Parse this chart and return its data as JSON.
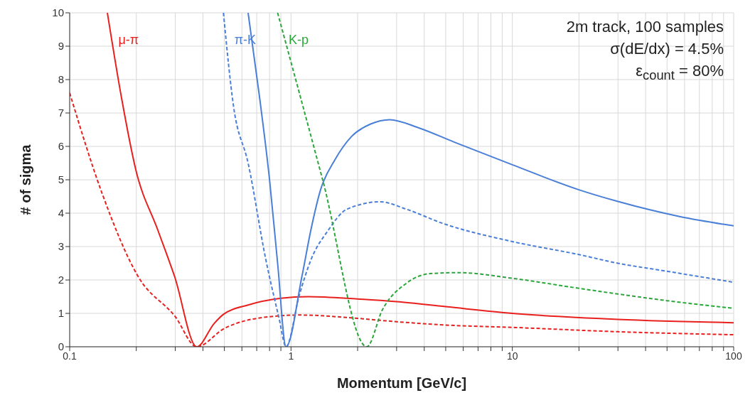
{
  "chart_data": {
    "type": "line",
    "xlabel": "Momentum [GeV/c]",
    "ylabel": "# of sigma",
    "log": "x",
    "grid": true,
    "marker": "none",
    "legend": false,
    "xlim": [
      0.1,
      100
    ],
    "ylim": [
      0,
      10
    ],
    "yticks": [
      0,
      1,
      2,
      3,
      4,
      5,
      6,
      7,
      8,
      9,
      10
    ],
    "xticks": [
      0.1,
      {
        "value": 0.2,
        "label": null
      },
      {
        "value": 0.3,
        "label": null
      },
      {
        "value": 0.4,
        "label": null
      },
      {
        "value": 0.5,
        "label": null
      },
      {
        "value": 0.6,
        "label": null
      },
      {
        "value": 0.7,
        "label": null
      },
      {
        "value": 0.8,
        "label": null
      },
      {
        "value": 0.9,
        "label": null
      },
      1,
      {
        "value": 2,
        "label": null
      },
      {
        "value": 3,
        "label": null
      },
      {
        "value": 4,
        "label": null
      },
      {
        "value": 5,
        "label": null
      },
      {
        "value": 6,
        "label": null
      },
      {
        "value": 7,
        "label": null
      },
      {
        "value": 8,
        "label": null
      },
      {
        "value": 9,
        "label": null
      },
      10,
      {
        "value": 20,
        "label": null
      },
      {
        "value": 30,
        "label": null
      },
      {
        "value": 40,
        "label": null
      },
      {
        "value": 50,
        "label": null
      },
      {
        "value": 60,
        "label": null
      },
      {
        "value": 70,
        "label": null
      },
      {
        "value": 80,
        "label": null
      },
      {
        "value": 90,
        "label": null
      },
      100
    ],
    "annotations": [
      "2m track, 100 samples",
      "σ(dE/dx) = 4.5%",
      "ε$_{count}$ = 80%"
    ],
    "series": [
      {
        "name": "μ-π",
        "color": "#e8201e",
        "line_style": "solid",
        "x": [
          0.148,
          0.171,
          0.199,
          0.25,
          0.298,
          0.375,
          0.45,
          0.495,
          0.64,
          0.9,
          1.2,
          2,
          3,
          5,
          10,
          30,
          100
        ],
        "values": [
          10,
          7.5,
          5.3,
          3.5,
          2.1,
          0,
          0.7,
          0.97,
          1.25,
          1.45,
          1.5,
          1.43,
          1.35,
          1.2,
          1.0,
          0.82,
          0.72
        ]
      },
      {
        "color": "#e8201e",
        "line_style": "dashed",
        "x": [
          0.1,
          0.14,
          0.204,
          0.3,
          0.375,
          0.5,
          0.7,
          1.1,
          2,
          3,
          5,
          10,
          30,
          100
        ],
        "values": [
          7.6,
          4.6,
          2.1,
          0.9,
          0,
          0.55,
          0.85,
          0.95,
          0.85,
          0.75,
          0.65,
          0.58,
          0.45,
          0.36
        ]
      },
      {
        "color": "#4a7fd8",
        "line_style": "solid",
        "x": [
          0.64,
          0.72,
          0.8,
          0.87,
          0.95,
          1.12,
          1.23,
          1.36,
          1.58,
          1.88,
          2.29,
          2.79,
          3.76,
          5.45,
          10,
          20,
          30,
          57,
          100
        ],
        "values": [
          10,
          7.5,
          5,
          2.5,
          0,
          2.1,
          3.5,
          4.7,
          5.6,
          6.3,
          6.67,
          6.8,
          6.56,
          6.13,
          5.45,
          4.7,
          4.35,
          3.9,
          3.62
        ]
      },
      {
        "name": "π-K",
        "color": "#4a7fd8",
        "line_style": "dashed",
        "x": [
          0.495,
          0.55,
          0.64,
          0.77,
          0.88,
          0.95,
          1.09,
          1.23,
          1.47,
          1.79,
          2.53,
          3.32,
          4.82,
          10,
          20,
          30,
          50,
          100
        ],
        "values": [
          10,
          7.2,
          5.5,
          2.6,
          0.9,
          0,
          1.54,
          2.6,
          3.48,
          4.12,
          4.34,
          4.12,
          3.7,
          3.15,
          2.76,
          2.5,
          2.26,
          1.93
        ]
      },
      {
        "name": "K-p",
        "color": "#2aa63a",
        "line_style": "dashed",
        "x": [
          0.87,
          1.39,
          2.2,
          2.59,
          3.32,
          4.25,
          5.7,
          10,
          20,
          30,
          50,
          100
        ],
        "values": [
          10,
          5,
          0,
          1.11,
          1.9,
          2.19,
          2.22,
          2.05,
          1.75,
          1.58,
          1.38,
          1.15
        ]
      }
    ]
  }
}
